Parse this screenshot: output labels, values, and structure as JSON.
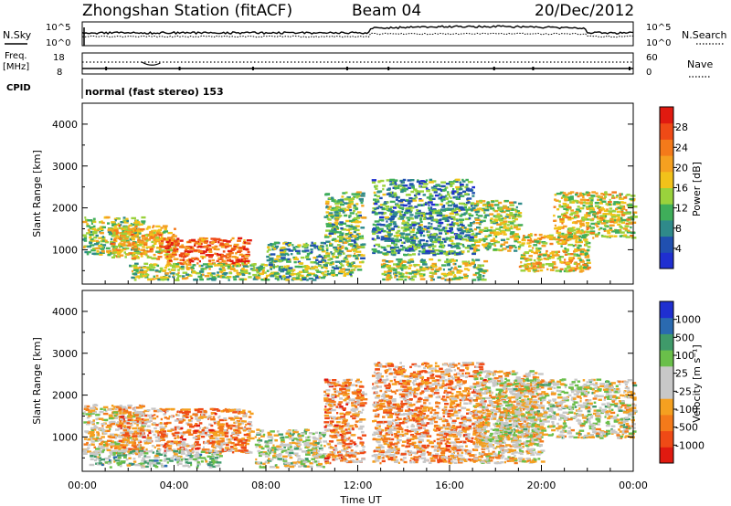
{
  "header": {
    "station": "Zhongshan Station (fitACF)",
    "beam": "Beam 04",
    "date": "20/Dec/2012"
  },
  "status_panels": {
    "nsky_label": "N.Sky",
    "nsearch_label": "N.Search",
    "freq_label_1": "Freq.",
    "freq_label_2": "[MHz]",
    "nave_label": "Nave",
    "cpid_label": "CPID",
    "cpid_value": "normal (fast stereo) 153",
    "nsky_ticks": [
      "10^5",
      "10^0"
    ],
    "nsearch_ticks": [
      "10^5",
      "10^0"
    ],
    "freq_ticks": [
      "18",
      "8"
    ],
    "nave_ticks": [
      "60",
      "0"
    ]
  },
  "chart_data": [
    {
      "type": "heatmap",
      "name": "Power",
      "ylabel": "Slant Range [km]",
      "y_ticks": [
        "1000",
        "2000",
        "3000",
        "4000"
      ],
      "ylim": [
        180,
        4500
      ],
      "xlim": [
        0,
        24
      ],
      "colorbar_label": "Power [dB]",
      "colorbar_ticks": [
        "4",
        "8",
        "12",
        "16",
        "20",
        "24",
        "28"
      ],
      "colors": [
        "#1f2fd0",
        "#2050b0",
        "#2f8a8a",
        "#3fae5a",
        "#9ad23c",
        "#f2c21a",
        "#f5a020",
        "#f47a1a",
        "#ef4a16",
        "#e01a10"
      ],
      "scatter_regions": [
        {
          "x0": 0.0,
          "x1": 2.6,
          "y0": 900,
          "y1": 1800,
          "level": 0.45
        },
        {
          "x0": 1.2,
          "x1": 4.0,
          "y0": 800,
          "y1": 1600,
          "level": 0.6
        },
        {
          "x0": 3.5,
          "x1": 7.2,
          "y0": 650,
          "y1": 1300,
          "level": 0.8
        },
        {
          "x0": 2.0,
          "x1": 8.0,
          "y0": 300,
          "y1": 700,
          "level": 0.45
        },
        {
          "x0": 8.0,
          "x1": 10.5,
          "y0": 300,
          "y1": 1200,
          "level": 0.35
        },
        {
          "x0": 10.5,
          "x1": 12.2,
          "y0": 400,
          "y1": 2400,
          "level": 0.4
        },
        {
          "x0": 12.6,
          "x1": 17.0,
          "y0": 900,
          "y1": 2700,
          "level": 0.3
        },
        {
          "x0": 13.0,
          "x1": 17.5,
          "y0": 300,
          "y1": 800,
          "level": 0.45
        },
        {
          "x0": 17.0,
          "x1": 19.0,
          "y0": 1000,
          "y1": 2200,
          "level": 0.5
        },
        {
          "x0": 19.0,
          "x1": 22.0,
          "y0": 500,
          "y1": 1400,
          "level": 0.55
        },
        {
          "x0": 20.5,
          "x1": 24.0,
          "y0": 1300,
          "y1": 2400,
          "level": 0.55
        }
      ]
    },
    {
      "type": "heatmap",
      "name": "Velocity",
      "ylabel": "Slant Range [km]",
      "y_ticks": [
        "1000",
        "2000",
        "3000",
        "4000"
      ],
      "ylim": [
        180,
        4500
      ],
      "xlim": [
        0,
        24
      ],
      "xlabel": "Time UT",
      "x_ticks": [
        "00:00",
        "04:00",
        "08:00",
        "12:00",
        "16:00",
        "20:00",
        "00:00"
      ],
      "colorbar_label": "Velocity [m s⁻¹]",
      "colorbar_ticks": [
        "1000",
        "500",
        "100",
        "25",
        "-25",
        "-100",
        "-500",
        "-1000"
      ],
      "colors": [
        "#e01a10",
        "#ef4a16",
        "#f47a1a",
        "#f5a020",
        "#c8c8c8",
        "#c8c8c8",
        "#6abf4a",
        "#3f9a6a",
        "#2a6ab0",
        "#1f2fd0"
      ],
      "scatter_regions": [
        {
          "x0": 0.0,
          "x1": 2.6,
          "y0": 600,
          "y1": 1800,
          "level": 0.45
        },
        {
          "x0": 1.5,
          "x1": 7.3,
          "y0": 650,
          "y1": 1700,
          "level": 0.3
        },
        {
          "x0": 0.3,
          "x1": 6.0,
          "y0": 300,
          "y1": 700,
          "level": 0.6
        },
        {
          "x0": 7.5,
          "x1": 10.5,
          "y0": 300,
          "y1": 1200,
          "level": 0.55
        },
        {
          "x0": 10.5,
          "x1": 12.2,
          "y0": 400,
          "y1": 2400,
          "level": 0.3
        },
        {
          "x0": 12.6,
          "x1": 17.5,
          "y0": 400,
          "y1": 2800,
          "level": 0.32
        },
        {
          "x0": 17.0,
          "x1": 20.0,
          "y0": 400,
          "y1": 2600,
          "level": 0.45
        },
        {
          "x0": 18.0,
          "x1": 24.0,
          "y0": 1000,
          "y1": 2400,
          "level": 0.5
        }
      ]
    }
  ]
}
